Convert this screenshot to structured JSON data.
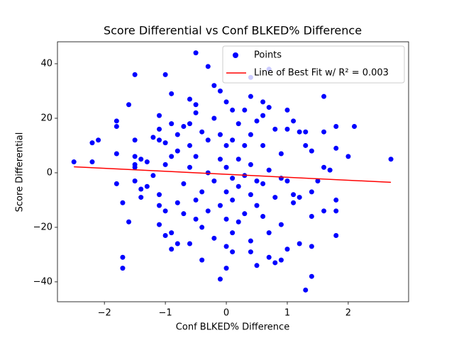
{
  "chart_data": {
    "type": "scatter",
    "title": "Score Differential vs Conf BLKED% Difference",
    "x_label": "Conf BLKED% Difference",
    "y_label": "Score Differential",
    "xlim": [
      -2.77,
      2.99
    ],
    "ylim": [
      -47.3,
      48.05
    ],
    "xticks": [
      {
        "value": -2,
        "label": "−2"
      },
      {
        "value": -1,
        "label": "−1"
      },
      0,
      1,
      2
    ],
    "yticks": [
      {
        "value": -40,
        "label": "−40"
      },
      {
        "value": -20,
        "label": "−20"
      },
      0,
      20,
      40
    ],
    "legend": "upper right",
    "series": [
      {
        "name": "Points",
        "color": "#0000ff",
        "kind": "points",
        "x": [
          -2.5,
          -2.2,
          -2.2,
          -2.1,
          -1.8,
          -1.8,
          -1.8,
          -1.8,
          -1.7,
          -1.7,
          -1.7,
          -1.6,
          -1.6,
          -1.5,
          -1.5,
          -1.5,
          -1.5,
          -1.5,
          -1.5,
          -1.4,
          -1.4,
          -1.4,
          -1.3,
          -1.3,
          -1.2,
          -1.2,
          -1.1,
          -1.1,
          -1.1,
          -1.1,
          -1.1,
          -1.1,
          -1.0,
          -1.0,
          -1.0,
          -1.0,
          -1.0,
          -0.9,
          -0.9,
          -0.9,
          -0.9,
          -0.9,
          -0.8,
          -0.8,
          -0.8,
          -0.8,
          -0.7,
          -0.7,
          -0.7,
          -0.6,
          -0.6,
          -0.6,
          -0.6,
          -0.6,
          -0.5,
          -0.5,
          -0.5,
          -0.5,
          -0.5,
          -0.5,
          -0.4,
          -0.4,
          -0.4,
          -0.4,
          -0.3,
          -0.3,
          -0.3,
          -0.3,
          -0.2,
          -0.2,
          -0.2,
          -0.2,
          -0.1,
          -0.1,
          -0.1,
          -0.1,
          -0.1,
          0,
          0,
          0,
          0,
          0,
          0,
          0,
          0.1,
          0.1,
          0.1,
          0.1,
          0.1,
          0.1,
          0.2,
          0.2,
          0.2,
          0.2,
          0.3,
          0.3,
          0.3,
          0.3,
          0.4,
          0.4,
          0.4,
          0.4,
          0.4,
          0.4,
          0.4,
          0.5,
          0.5,
          0.5,
          0.5,
          0.6,
          0.6,
          0.6,
          0.6,
          0.6,
          0.7,
          0.7,
          0.7,
          0.7,
          0.7,
          0.8,
          0.8,
          0.8,
          0.9,
          0.9,
          0.9,
          0.9,
          1.0,
          1.0,
          1.0,
          1.0,
          1.1,
          1.1,
          1.1,
          1.2,
          1.2,
          1.2,
          1.3,
          1.3,
          1.3,
          1.4,
          1.4,
          1.4,
          1.4,
          1.4,
          1.5,
          1.6,
          1.6,
          1.6,
          1.6,
          1.7,
          1.8,
          1.8,
          1.8,
          1.8,
          1.8,
          2.0,
          2.1,
          2.7
        ],
        "values": [
          4,
          11,
          4,
          12,
          19,
          17,
          7,
          -4,
          -11,
          -31,
          -35,
          25,
          -18,
          36,
          12,
          6,
          3,
          2,
          -3,
          -6,
          -9,
          5,
          4,
          -5,
          13,
          -1,
          21,
          16,
          12,
          -8,
          -12,
          -19,
          36,
          11,
          3,
          -14,
          -23,
          29,
          18,
          6,
          -22,
          -28,
          14,
          8,
          -11,
          -26,
          17,
          -4,
          -15,
          27,
          18,
          10,
          2,
          -26,
          44,
          25,
          22,
          6,
          -10,
          -17,
          15,
          -7,
          -20,
          -32,
          39,
          12,
          0,
          -14,
          32,
          20,
          -3,
          -24,
          30,
          14,
          5,
          -12,
          -39,
          26,
          10,
          2,
          -7,
          -17,
          -27,
          -35,
          23,
          12,
          -2,
          -10,
          -22,
          -29,
          18,
          5,
          -5,
          -18,
          23,
          10,
          -1,
          -15,
          35,
          28,
          14,
          3,
          -8,
          -25,
          -29,
          19,
          -3,
          -12,
          -34,
          26,
          21,
          10,
          -4,
          -16,
          38,
          24,
          1,
          -22,
          -31,
          16,
          -9,
          -33,
          7,
          -2,
          -19,
          -32,
          23,
          16,
          -3,
          -28,
          19,
          -8,
          -11,
          15,
          -9,
          -26,
          15,
          10,
          -43,
          8,
          -7,
          -16,
          -27,
          -38,
          -3,
          28,
          15,
          2,
          -14,
          1,
          17,
          9,
          -10,
          -14,
          -23,
          6,
          17,
          5
        ]
      },
      {
        "name": "Line of Best Fit w/ R² = 0.003",
        "color": "#ff0000",
        "kind": "line",
        "x": [
          -2.5,
          2.7
        ],
        "values": [
          2.2,
          -3.5
        ]
      }
    ]
  }
}
